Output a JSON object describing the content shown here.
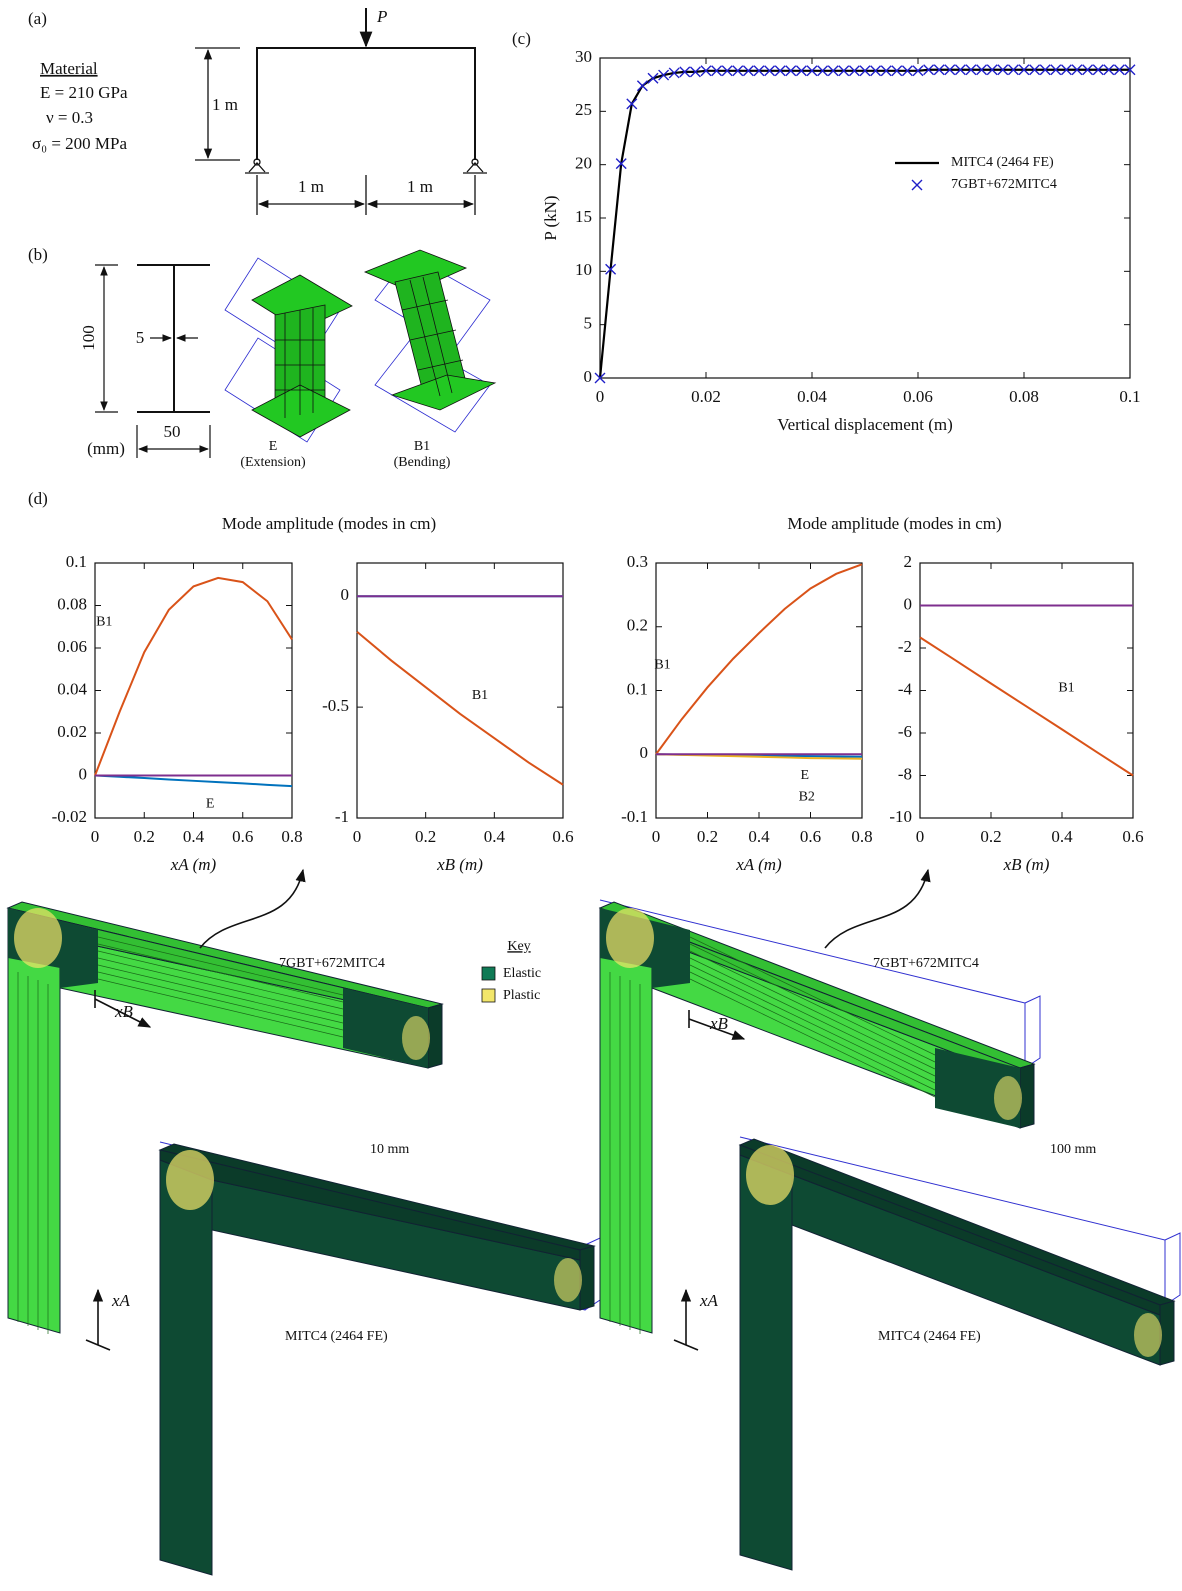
{
  "panel_labels": [
    "(a)",
    "(b)",
    "(c)",
    "(d)"
  ],
  "material": {
    "title": "Material",
    "lines": [
      "E = 210 GPa",
      "ν = 0.3",
      "σ₀ = 200 MPa"
    ]
  },
  "frame": {
    "load": "P",
    "height": "1 m",
    "spans": [
      "1 m",
      "1 m"
    ]
  },
  "section": {
    "depth": "100",
    "web": "5",
    "width": "50",
    "unit": "(mm)",
    "modes": [
      {
        "name": "E",
        "label": "(Extension)"
      },
      {
        "name": "B1",
        "label": "(Bending)"
      }
    ]
  },
  "chart_data": [
    {
      "type": "line",
      "xlabel": "Vertical displacement (m)",
      "ylabel": "P (kN)",
      "legend": "right",
      "x": [
        0,
        0.002,
        0.004,
        0.006,
        0.008,
        0.01,
        0.012,
        0.014,
        0.016,
        0.018,
        0.02,
        0.022,
        0.024,
        0.026,
        0.028,
        0.03,
        0.032,
        0.034,
        0.036,
        0.038,
        0.04,
        0.042,
        0.044,
        0.046,
        0.048,
        0.05,
        0.052,
        0.054,
        0.056,
        0.058,
        0.06,
        0.062,
        0.064,
        0.066,
        0.068,
        0.07,
        0.072,
        0.074,
        0.076,
        0.078,
        0.08,
        0.082,
        0.084,
        0.086,
        0.088,
        0.09,
        0.092,
        0.094,
        0.096,
        0.098,
        0.1
      ],
      "series": [
        {
          "name": "MITC4 (2464 FE)",
          "color": "#000000",
          "marker": "none",
          "values": [
            0,
            10.2,
            20.1,
            25.7,
            27.4,
            28.1,
            28.4,
            28.6,
            28.7,
            28.7,
            28.8,
            28.8,
            28.8,
            28.8,
            28.8,
            28.8,
            28.8,
            28.8,
            28.8,
            28.8,
            28.8,
            28.8,
            28.8,
            28.8,
            28.8,
            28.8,
            28.8,
            28.8,
            28.8,
            28.8,
            28.8,
            28.9,
            28.9,
            28.9,
            28.9,
            28.9,
            28.9,
            28.9,
            28.9,
            28.9,
            28.9,
            28.9,
            28.9,
            28.9,
            28.9,
            28.9,
            28.9,
            28.9,
            28.9,
            28.9,
            28.9
          ]
        },
        {
          "name": "7GBT+672MITC4",
          "color": "#1f1fc8",
          "marker": "x",
          "values": [
            0,
            10.2,
            20.1,
            25.7,
            27.4,
            28.1,
            28.4,
            28.6,
            28.7,
            28.7,
            28.8,
            28.8,
            28.8,
            28.8,
            28.8,
            28.8,
            28.8,
            28.8,
            28.8,
            28.8,
            28.8,
            28.8,
            28.8,
            28.8,
            28.8,
            28.8,
            28.8,
            28.8,
            28.8,
            28.8,
            28.8,
            28.9,
            28.9,
            28.9,
            28.9,
            28.9,
            28.9,
            28.9,
            28.9,
            28.9,
            28.9,
            28.9,
            28.9,
            28.9,
            28.9,
            28.9,
            28.9,
            28.9,
            28.9,
            28.9,
            28.9
          ]
        }
      ],
      "xlim": [
        0,
        0.1
      ],
      "xticks": [
        0,
        0.02,
        0.04,
        0.06,
        0.08,
        0.1
      ],
      "ylim": [
        0,
        30
      ],
      "yticks": [
        0,
        5,
        10,
        15,
        20,
        25,
        30
      ]
    },
    {
      "type": "line",
      "title": "Mode amplitude (modes in cm)",
      "xlabel": "xA (m)",
      "x": [
        0,
        0.1,
        0.2,
        0.3,
        0.4,
        0.5,
        0.6,
        0.7,
        0.8
      ],
      "series": [
        {
          "name": "B1",
          "color": "#d95319",
          "values": [
            0,
            0.03,
            0.058,
            0.078,
            0.089,
            0.093,
            0.091,
            0.082,
            0.064
          ]
        },
        {
          "name": "E",
          "color": "#0072bd",
          "values": [
            0,
            -0.0006,
            -0.0012,
            -0.0019,
            -0.0025,
            -0.0031,
            -0.0037,
            -0.0044,
            -0.005
          ]
        },
        {
          "color": "#7e2f8e",
          "values": [
            0,
            0,
            0,
            0,
            0,
            0,
            0,
            0,
            0
          ]
        }
      ],
      "xlim": [
        0,
        0.8
      ],
      "xticks": [
        0,
        0.2,
        0.4,
        0.6,
        0.8
      ],
      "ylim": [
        -0.02,
        0.1
      ],
      "yticks": [
        -0.02,
        0,
        0.02,
        0.04,
        0.06,
        0.08,
        0.1
      ]
    },
    {
      "type": "line",
      "xlabel": "xB (m)",
      "x": [
        0,
        0.1,
        0.2,
        0.3,
        0.4,
        0.5,
        0.6
      ],
      "series": [
        {
          "name": "B1",
          "color": "#d95319",
          "values": [
            -0.16,
            -0.29,
            -0.41,
            -0.53,
            -0.64,
            -0.75,
            -0.85
          ]
        },
        {
          "color": "#0072bd",
          "values": [
            0,
            0,
            0,
            0,
            0,
            0,
            0
          ]
        },
        {
          "color": "#7e2f8e",
          "values": [
            0,
            0,
            0,
            0,
            0,
            0,
            0
          ]
        }
      ],
      "xlim": [
        0,
        0.6
      ],
      "xticks": [
        0,
        0.2,
        0.4,
        0.6
      ],
      "ylim": [
        -1,
        0.15
      ],
      "yticks": [
        -1,
        -0.5,
        0
      ]
    },
    {
      "type": "line",
      "title": "Mode amplitude (modes in cm)",
      "xlabel": "xA (m)",
      "x": [
        0,
        0.1,
        0.2,
        0.3,
        0.4,
        0.5,
        0.6,
        0.7,
        0.8
      ],
      "series": [
        {
          "name": "B1",
          "color": "#d95319",
          "values": [
            0,
            0.055,
            0.105,
            0.15,
            0.19,
            0.228,
            0.26,
            0.283,
            0.298
          ]
        },
        {
          "name": "E",
          "color": "#0072bd",
          "values": [
            0,
            -0.0005,
            -0.001,
            -0.0015,
            -0.002,
            -0.0025,
            -0.003,
            -0.0035,
            -0.004
          ]
        },
        {
          "name": "B2",
          "color": "#edb120",
          "values": [
            0,
            -0.001,
            -0.002,
            -0.003,
            -0.004,
            -0.005,
            -0.006,
            -0.0065,
            -0.007
          ]
        },
        {
          "color": "#7e2f8e",
          "values": [
            0,
            0,
            0,
            0,
            0,
            0,
            0,
            0,
            0
          ]
        }
      ],
      "xlim": [
        0,
        0.8
      ],
      "xticks": [
        0,
        0.2,
        0.4,
        0.6,
        0.8
      ],
      "ylim": [
        -0.1,
        0.3
      ],
      "yticks": [
        -0.1,
        0,
        0.1,
        0.2,
        0.3
      ]
    },
    {
      "type": "line",
      "xlabel": "xB (m)",
      "x": [
        0,
        0.1,
        0.2,
        0.3,
        0.4,
        0.5,
        0.6
      ],
      "series": [
        {
          "name": "B1",
          "color": "#d95319",
          "values": [
            -1.5,
            -2.58,
            -3.67,
            -4.75,
            -5.83,
            -6.92,
            -8
          ]
        },
        {
          "color": "#7e2f8e",
          "values": [
            0,
            0,
            0,
            0,
            0,
            0,
            0
          ]
        }
      ],
      "xlim": [
        0,
        0.6
      ],
      "xticks": [
        0,
        0.2,
        0.4,
        0.6
      ],
      "ylim": [
        -10,
        2
      ],
      "yticks": [
        -10,
        -8,
        -6,
        -4,
        -2,
        0,
        2
      ]
    }
  ],
  "results": {
    "left": {
      "model": "7GBT+672MITC4",
      "reference": "MITC4 (2464 FE)",
      "scale": "10 mm",
      "x_a": "xA",
      "x_b": "xB"
    },
    "right": {
      "model": "7GBT+672MITC4",
      "reference": "MITC4 (2464 FE)",
      "scale": "100 mm",
      "x_a": "xA",
      "x_b": "xB"
    }
  },
  "key": {
    "title": "Key",
    "items": [
      "Elastic",
      "Plastic"
    ]
  }
}
